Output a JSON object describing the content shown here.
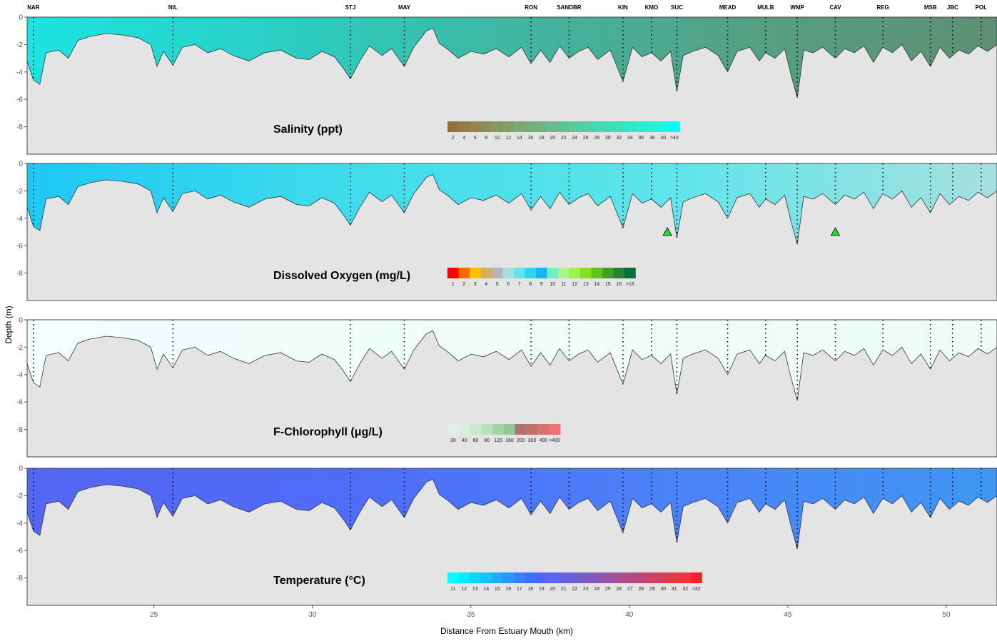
{
  "chart_data": {
    "type": "heatmap",
    "xlabel": "Distance From Estuary Mouth (km)",
    "ylabel": "Depth (m)",
    "xlim": [
      21,
      51.6
    ],
    "ylim": [
      0,
      -10
    ],
    "x_ticks": [
      25,
      30,
      35,
      40,
      45,
      50
    ],
    "y_ticks": [
      0,
      -2,
      -4,
      -6,
      -8
    ],
    "stations": [
      {
        "name": "NAR",
        "km": 21.2
      },
      {
        "name": "NIL",
        "km": 25.6
      },
      {
        "name": "STJ",
        "km": 31.2
      },
      {
        "name": "MAY",
        "km": 32.9
      },
      {
        "name": "RON",
        "km": 36.9
      },
      {
        "name": "SANDBR",
        "km": 38.1
      },
      {
        "name": "KIN",
        "km": 39.8
      },
      {
        "name": "KMO",
        "km": 40.7
      },
      {
        "name": "SUC",
        "km": 41.5
      },
      {
        "name": "MEAD",
        "km": 43.1
      },
      {
        "name": "MULB",
        "km": 44.3
      },
      {
        "name": "WMP",
        "km": 45.3
      },
      {
        "name": "CAV",
        "km": 46.5
      },
      {
        "name": "REG",
        "km": 48.0
      },
      {
        "name": "MSB",
        "km": 49.5
      },
      {
        "name": "JBC",
        "km": 50.2
      },
      {
        "name": "POL",
        "km": 51.1
      }
    ],
    "bottom_profile": {
      "km": [
        21.0,
        21.2,
        21.4,
        21.6,
        22.0,
        22.3,
        22.6,
        23.0,
        23.5,
        24.0,
        24.5,
        24.9,
        25.1,
        25.3,
        25.6,
        25.9,
        26.3,
        26.7,
        27.1,
        27.5,
        28.0,
        28.5,
        29.0,
        29.5,
        29.9,
        30.3,
        30.7,
        31.0,
        31.2,
        31.5,
        31.8,
        32.2,
        32.5,
        32.9,
        33.2,
        33.6,
        33.8,
        34.0,
        34.3,
        34.6,
        35.0,
        35.4,
        35.8,
        36.2,
        36.6,
        36.9,
        37.2,
        37.5,
        37.8,
        38.1,
        38.4,
        38.7,
        39.0,
        39.4,
        39.8,
        40.1,
        40.4,
        40.7,
        41.0,
        41.3,
        41.5,
        41.7,
        42.0,
        42.4,
        42.8,
        43.1,
        43.4,
        43.8,
        44.1,
        44.3,
        44.6,
        44.9,
        45.1,
        45.3,
        45.5,
        45.8,
        46.1,
        46.5,
        46.8,
        47.1,
        47.4,
        47.7,
        48.0,
        48.3,
        48.6,
        48.9,
        49.2,
        49.5,
        49.8,
        50.1,
        50.4,
        50.7,
        51.0,
        51.3,
        51.6
      ],
      "depth": [
        -3.2,
        -4.6,
        -4.9,
        -2.6,
        -2.4,
        -3.0,
        -1.7,
        -1.4,
        -1.2,
        -1.3,
        -1.5,
        -2.0,
        -3.6,
        -2.5,
        -3.5,
        -2.2,
        -2.0,
        -2.6,
        -2.3,
        -2.8,
        -3.2,
        -2.6,
        -2.4,
        -3.0,
        -3.1,
        -2.5,
        -2.9,
        -3.8,
        -4.5,
        -3.2,
        -2.1,
        -2.8,
        -2.3,
        -3.6,
        -2.2,
        -1.0,
        -0.8,
        -1.9,
        -2.4,
        -3.0,
        -2.5,
        -2.7,
        -2.3,
        -2.9,
        -2.2,
        -3.4,
        -2.4,
        -3.3,
        -2.1,
        -3.0,
        -2.5,
        -2.2,
        -3.1,
        -2.4,
        -4.7,
        -2.2,
        -2.9,
        -2.6,
        -3.2,
        -2.5,
        -5.4,
        -2.8,
        -2.5,
        -2.2,
        -2.8,
        -4.0,
        -2.5,
        -2.2,
        -3.2,
        -2.6,
        -3.0,
        -2.3,
        -4.2,
        -5.9,
        -2.4,
        -2.6,
        -2.2,
        -3.0,
        -2.3,
        -2.6,
        -2.1,
        -3.3,
        -2.2,
        -2.6,
        -2.0,
        -3.2,
        -2.5,
        -3.6,
        -2.2,
        -3.0,
        -2.4,
        -2.7,
        -2.1,
        -2.5,
        -2.0
      ]
    },
    "panels": [
      {
        "title": "Salinity (ppt)",
        "colorbar_labels": [
          "2",
          "4",
          "6",
          "8",
          "10",
          "12",
          "14",
          "16",
          "18",
          "20",
          "22",
          "24",
          "26",
          "28",
          "30",
          "32",
          "34",
          "36",
          "38",
          "40",
          ">40"
        ],
        "colorbar_colors": [
          "#9a6f3e",
          "#977a46",
          "#93854e",
          "#8e8f57",
          "#889760",
          "#829e69",
          "#7ba772",
          "#74ae7b",
          "#6db584",
          "#66bc8c",
          "#5ec394",
          "#57c99c",
          "#50cfa4",
          "#48d6ac",
          "#41dcb4",
          "#3ae2bc",
          "#32e8c4",
          "#2bedcc",
          "#24f2d4",
          "#1df7dc",
          "#00ffff"
        ],
        "water_gradient": [
          "#1ce4e2",
          "#2ad0c4",
          "#3fb7a2",
          "#55a083",
          "#5e8f73"
        ]
      },
      {
        "title": "Dissolved Oxygen (mg/L)",
        "colorbar_labels": [
          "1",
          "2",
          "3",
          "4",
          "5",
          "6",
          "7",
          "8",
          "9",
          "10",
          "11",
          "12",
          "13",
          "14",
          "15",
          "16",
          ">16"
        ],
        "colorbar_colors": [
          "#ff0000",
          "#ff6a00",
          "#ffc000",
          "#d4b05a",
          "#b5b5b5",
          "#a6e0e0",
          "#5fe5ea",
          "#2fd4f2",
          "#11b8f0",
          "#6fefc8",
          "#a8f58c",
          "#a2f04a",
          "#86df1c",
          "#62c21a",
          "#3fa022",
          "#23862d",
          "#00703c"
        ],
        "water_gradient": [
          "#1ec8f4",
          "#3fdceb",
          "#5fe5ea",
          "#a6e0e0"
        ]
      },
      {
        "title": "F-Chlorophyll (μg/L)",
        "colorbar_labels": [
          "20",
          "40",
          "60",
          "80",
          "120",
          "160",
          "200",
          "300",
          "400",
          ">400"
        ],
        "colorbar_colors": [
          "#e2efe8",
          "#daeedc",
          "#cce9cd",
          "#b8e0b9",
          "#a3d6a4",
          "#8dcb8e",
          "#b17371",
          "#c0716e",
          "#d47470",
          "#f07070"
        ],
        "water_gradient": [
          "#f2fffe",
          "#eefbf8"
        ]
      },
      {
        "title": "Temperature (°C)",
        "colorbar_labels": [
          "11",
          "12",
          "13",
          "14",
          "15",
          "16",
          "17",
          "18",
          "19",
          "20",
          "21",
          "22",
          "23",
          "24",
          "25",
          "26",
          "27",
          "28",
          "29",
          "30",
          "31",
          "32",
          ">32"
        ],
        "colorbar_colors": [
          "#00ffff",
          "#05ecff",
          "#0ad8ff",
          "#14c2ff",
          "#1eacff",
          "#2896ff",
          "#3381ff",
          "#3d6dff",
          "#5062ff",
          "#5a66f4",
          "#6163e4",
          "#6e5fd4",
          "#7b5bc4",
          "#8857b4",
          "#9553a4",
          "#a24f94",
          "#af4b84",
          "#bc4774",
          "#c94364",
          "#d63f54",
          "#e33b44",
          "#ef3440",
          "#f5202a"
        ],
        "water_gradient": [
          "#5466f3",
          "#4f6cf8",
          "#4a82f7",
          "#3f96f2"
        ]
      }
    ],
    "do_low_markers_km": [
      41.2,
      46.5
    ]
  }
}
